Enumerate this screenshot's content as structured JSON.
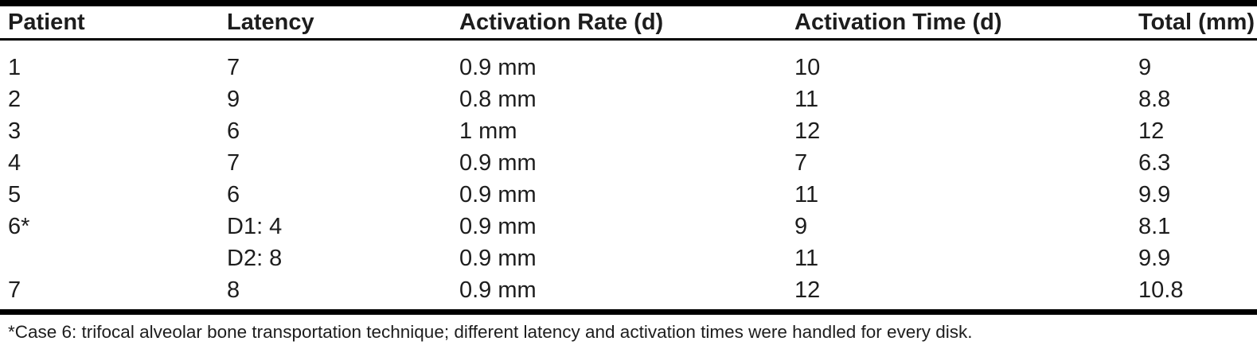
{
  "table": {
    "columns": [
      {
        "label": "Patient"
      },
      {
        "label": "Latency"
      },
      {
        "label": "Activation Rate (d)"
      },
      {
        "label": "Activation Time (d)"
      },
      {
        "label": "Total (mm)"
      }
    ],
    "rows": [
      [
        "1",
        "7",
        "0.9 mm",
        "10",
        "9"
      ],
      [
        "2",
        "9",
        "0.8 mm",
        "11",
        "8.8"
      ],
      [
        "3",
        "6",
        "1 mm",
        "12",
        "12"
      ],
      [
        "4",
        "7",
        "0.9 mm",
        "7",
        "6.3"
      ],
      [
        "5",
        "6",
        "0.9 mm",
        "11",
        "9.9"
      ],
      [
        "6*",
        "D1: 4",
        "0.9 mm",
        "9",
        "8.1"
      ],
      [
        "",
        "D2: 8",
        "0.9 mm",
        "11",
        "9.9"
      ],
      [
        "7",
        "8",
        "0.9 mm",
        "12",
        "10.8"
      ]
    ],
    "footnote": "*Case 6: trifocal alveolar bone transportation technique; different latency and activation times were handled for every disk."
  },
  "chart_data": {
    "type": "table",
    "columns": [
      "Patient",
      "Latency",
      "Activation Rate (d)",
      "Activation Time (d)",
      "Total (mm)"
    ],
    "rows": [
      [
        "1",
        "7",
        "0.9 mm",
        "10",
        "9"
      ],
      [
        "2",
        "9",
        "0.8 mm",
        "11",
        "8.8"
      ],
      [
        "3",
        "6",
        "1 mm",
        "12",
        "12"
      ],
      [
        "4",
        "7",
        "0.9 mm",
        "7",
        "6.3"
      ],
      [
        "5",
        "6",
        "0.9 mm",
        "11",
        "9.9"
      ],
      [
        "6*",
        "D1: 4",
        "0.9 mm",
        "9",
        "8.1"
      ],
      [
        "",
        "D2: 8",
        "0.9 mm",
        "11",
        "9.9"
      ],
      [
        "7",
        "8",
        "0.9 mm",
        "12",
        "10.8"
      ]
    ],
    "footnote": "*Case 6: trifocal alveolar bone transportation technique; different latency and activation times were handled for every disk."
  },
  "colors": {
    "text": "#1d1d1d",
    "rule": "#000000",
    "background": "#ffffff"
  }
}
